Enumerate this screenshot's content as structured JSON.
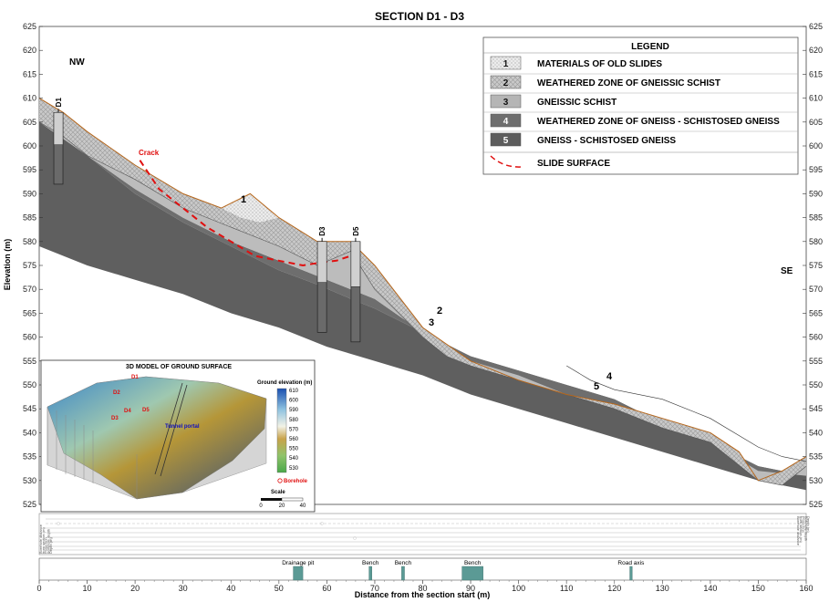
{
  "title": "SECTION D1 - D3",
  "directions": {
    "left": "NW",
    "right": "SE"
  },
  "axes": {
    "ylabel": "Elevation (m)",
    "xlabel": "Distance from the section start (m)",
    "yticks": [
      "625",
      "620",
      "615",
      "610",
      "605",
      "600",
      "595",
      "590",
      "585",
      "580",
      "575",
      "570",
      "565",
      "560",
      "555",
      "550",
      "545",
      "540",
      "535",
      "530",
      "525"
    ],
    "xticks": [
      "0",
      "10",
      "20",
      "30",
      "40",
      "50",
      "60",
      "70",
      "80",
      "90",
      "100",
      "110",
      "120",
      "130",
      "140",
      "150",
      "160"
    ]
  },
  "legend": {
    "title": "LEGEND",
    "items": [
      {
        "num": "1",
        "label": "MATERIALS OF OLD SLIDES",
        "color": "#e6e6e6"
      },
      {
        "num": "2",
        "label": "WEATHERED ZONE OF GNEISSIC SCHIST",
        "color": "#c7c7c7"
      },
      {
        "num": "3",
        "label": "GNEISSIC SCHIST",
        "color": "#b5b5b5"
      },
      {
        "num": "4",
        "label": "WEATHERED ZONE OF GNEISS - SCHISTOSED GNEISS",
        "color": "#6e6e6e"
      },
      {
        "num": "5",
        "label": "GNEISS - SCHISTOSED GNEISS",
        "color": "#5d5d5d"
      }
    ],
    "slide_surface": "SLIDE SURFACE"
  },
  "section_labels": {
    "crack": "Crack",
    "zone1": "1",
    "zone2": "2",
    "zone3": "3",
    "zone4": "4",
    "zone5": "5"
  },
  "boreholes": [
    "D1",
    "D3",
    "D5"
  ],
  "inset": {
    "title": "3D MODEL OF GROUND SURFACE",
    "colorbar_title": "Ground elevation (m)",
    "colorbar_ticks": [
      "610",
      "600",
      "590",
      "580",
      "570",
      "560",
      "550",
      "540",
      "530"
    ],
    "borehole_legend": "Borehole",
    "scale_label": "Scale",
    "scale_ticks": [
      "0",
      "20",
      "40"
    ],
    "map_labels": [
      "D1",
      "D2",
      "D3",
      "D4",
      "D5",
      "Tunnel portal"
    ]
  },
  "strip_labels": {
    "left": [
      "Borehole distance",
      "from section (m)",
      "Projection",
      "Borehole depth",
      "Depth (m)"
    ],
    "right": [
      "Borehole distance",
      "from section (m)",
      "Projection",
      "Borehole depth",
      "Depth (m)"
    ]
  },
  "features": [
    {
      "label": "Drainage pit",
      "start": 53,
      "end": 55
    },
    {
      "label": "Bench",
      "start": 68.8,
      "end": 69.4
    },
    {
      "label": "Bench",
      "start": 75.6,
      "end": 76.2
    },
    {
      "label": "Bench",
      "start": 88.2,
      "end": 92.6
    },
    {
      "label": "Road axis",
      "start": 123.2,
      "end": 123.7
    }
  ],
  "chart_data": {
    "type": "area",
    "xlim": [
      0,
      160
    ],
    "ylim": [
      525,
      625
    ],
    "ground_surface": {
      "x": [
        0,
        5,
        10,
        20,
        30,
        38,
        44,
        50,
        58,
        65,
        70,
        80,
        90,
        100,
        110,
        120,
        130,
        140,
        146,
        150,
        155,
        160
      ],
      "y": [
        610,
        607,
        603,
        596,
        590,
        587,
        590,
        585,
        580,
        580,
        575,
        562,
        555,
        551,
        548,
        546,
        543,
        540,
        536,
        530,
        532,
        535
      ]
    },
    "old_slide_base": {
      "x": [
        38,
        42,
        46,
        50
      ],
      "y": [
        587,
        585,
        584,
        585
      ]
    },
    "zone2_base": {
      "x": [
        0,
        5,
        10,
        20,
        30,
        40,
        50,
        58,
        65,
        70,
        80,
        85,
        90,
        100,
        110,
        120,
        130,
        140,
        150,
        155,
        160
      ],
      "y": [
        605,
        602,
        598,
        593,
        587,
        583,
        579,
        575,
        578,
        570,
        560,
        556,
        554,
        551,
        548,
        545,
        541,
        538,
        530,
        529,
        533
      ]
    },
    "zone3_base": {
      "x": [
        0,
        10,
        20,
        30,
        40,
        50,
        60,
        65,
        70,
        80,
        90,
        100,
        110,
        120,
        130,
        140,
        150,
        160
      ],
      "y": [
        605,
        598,
        591,
        585,
        580,
        576,
        572,
        570,
        568,
        561,
        555,
        552,
        548,
        545,
        541,
        538,
        532,
        531
      ]
    },
    "zone5_top": {
      "x": [
        0,
        10,
        20,
        30,
        40,
        50,
        58,
        65,
        70,
        80,
        90,
        100,
        110,
        120,
        130,
        140,
        150,
        160
      ],
      "y": [
        605,
        598,
        590,
        584,
        579,
        574,
        571,
        568,
        566,
        561,
        556,
        553,
        550,
        547,
        542,
        538,
        533,
        531
      ]
    },
    "zone4_line": {
      "x": [
        110,
        115,
        120,
        130,
        140,
        150,
        155,
        160
      ],
      "y": [
        554,
        551,
        549,
        547,
        543,
        537,
        535,
        534
      ]
    },
    "section_bottom": {
      "x": [
        0,
        10,
        20,
        30,
        40,
        50,
        60,
        70,
        80,
        90,
        100,
        110,
        120,
        130,
        140,
        150,
        160
      ],
      "y": [
        579,
        575,
        572,
        569,
        565,
        562,
        558,
        555,
        552,
        548,
        545,
        542,
        539,
        536,
        533,
        530,
        528
      ]
    },
    "slide_surface": {
      "x": [
        21,
        25,
        30,
        35,
        40,
        45,
        50,
        55,
        58,
        62,
        65,
        66
      ],
      "y": [
        597,
        591,
        587,
        583,
        580,
        577,
        576,
        575,
        575.5,
        576,
        577,
        579
      ]
    },
    "boreholes": [
      {
        "name": "D1",
        "x": 4,
        "top": 607,
        "bottom": 592
      },
      {
        "name": "D3",
        "x": 59,
        "top": 580,
        "bottom": 561
      },
      {
        "name": "D5",
        "x": 66,
        "top": 580,
        "bottom": 559
      }
    ]
  }
}
